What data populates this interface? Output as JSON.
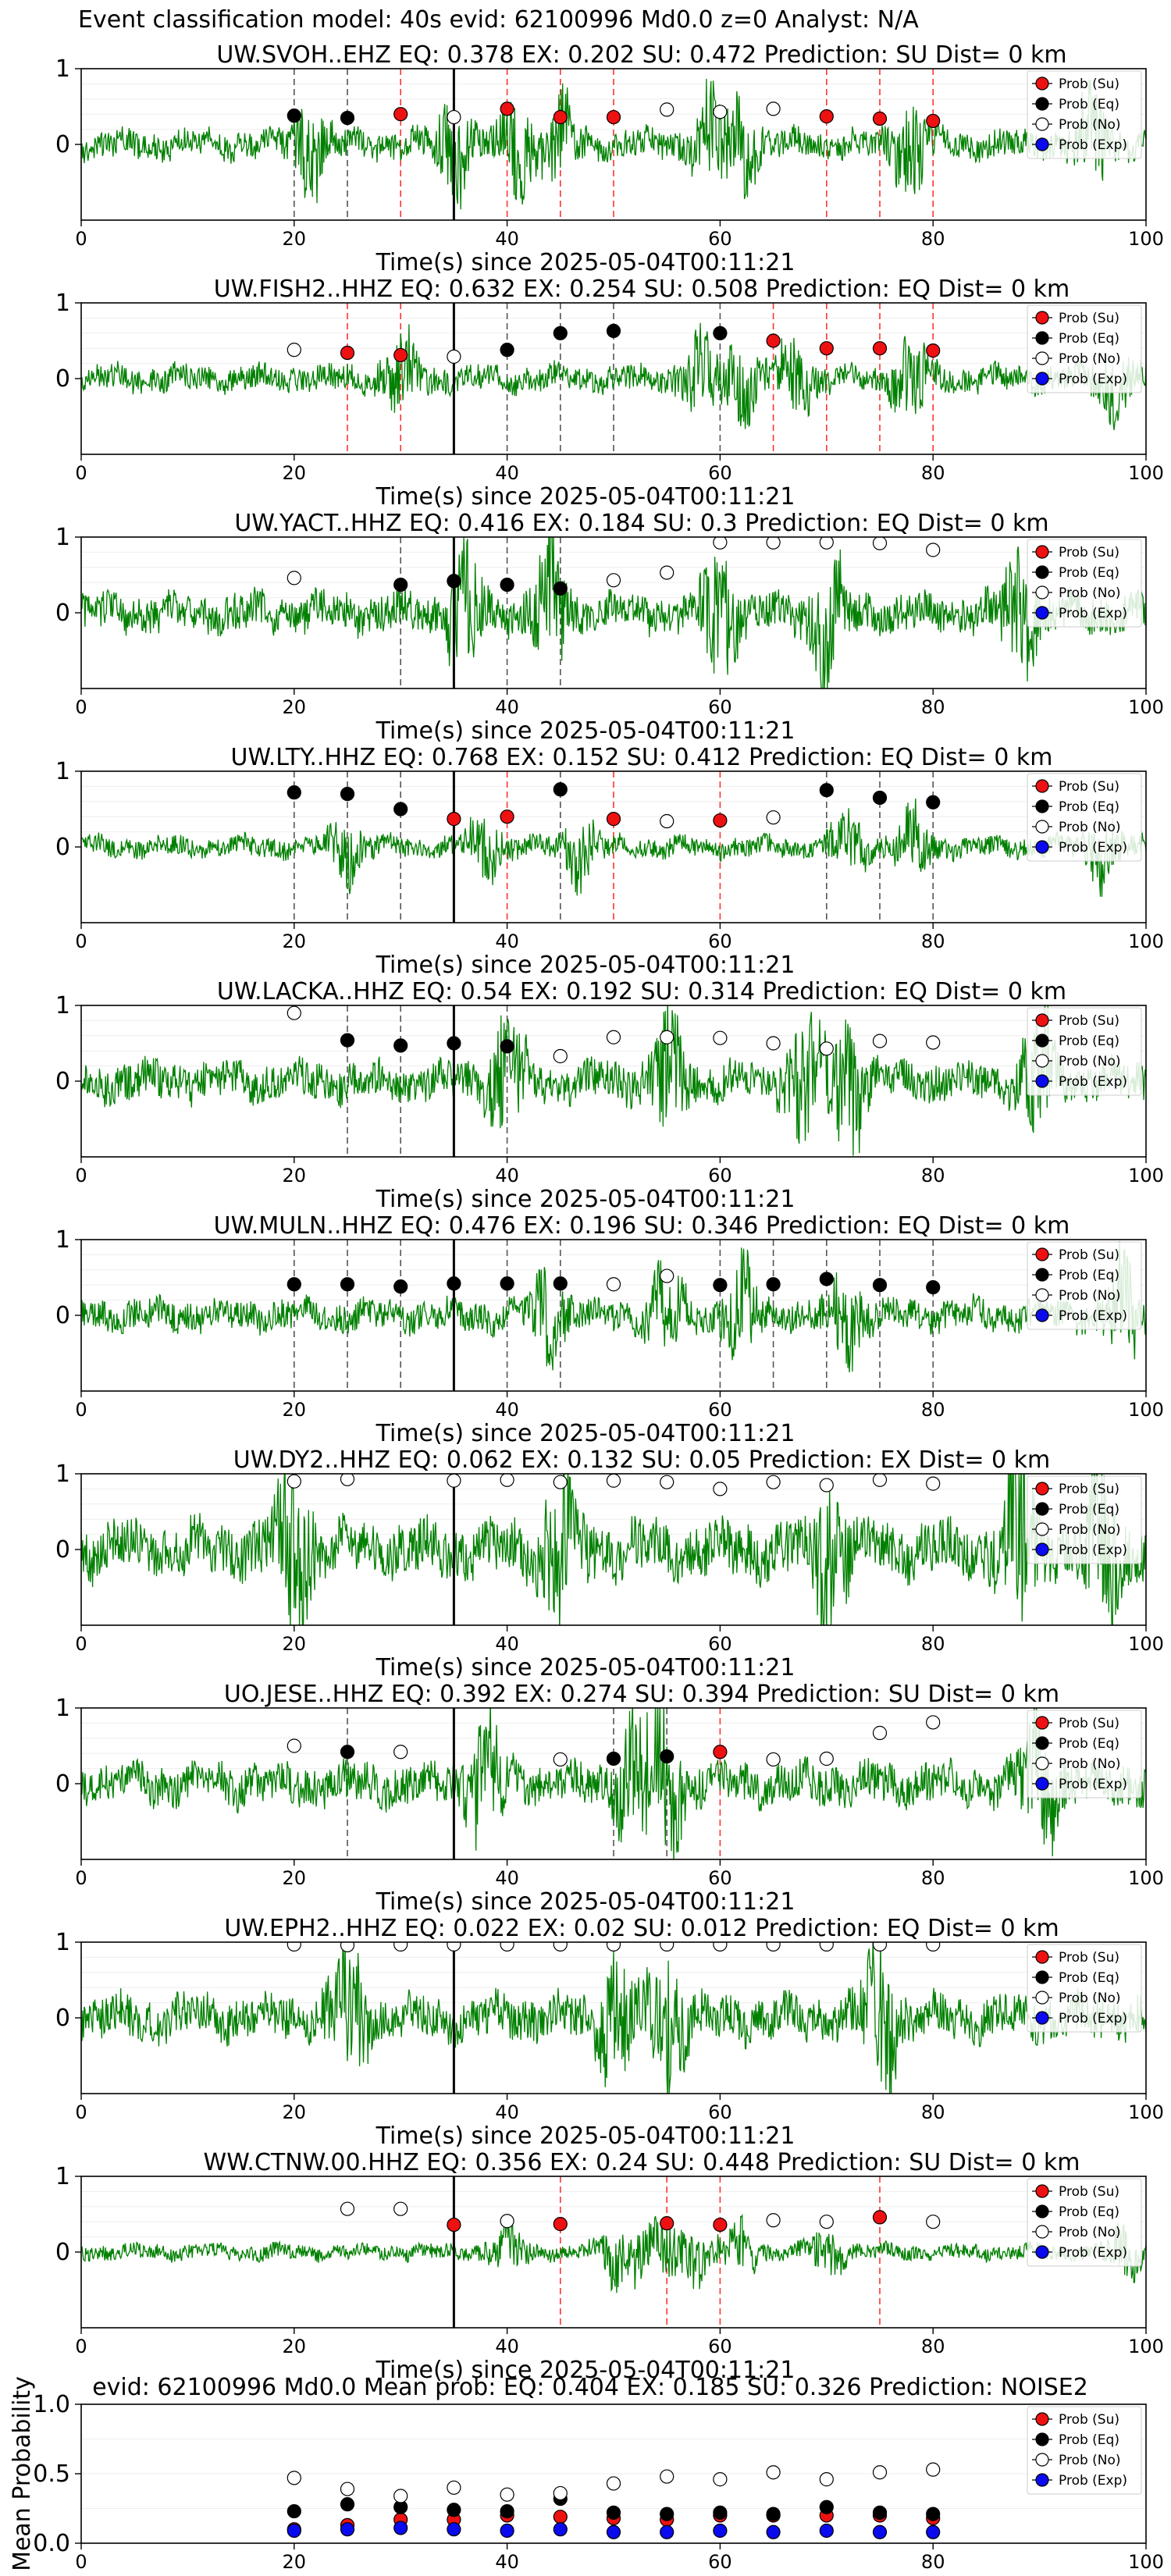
{
  "figure": {
    "suptitle": "Event classification model: 40s evid: 62100996 Md0.0 z=0 Analyst: N/A"
  },
  "colors": {
    "trace": "#008000",
    "su": "#ee1111",
    "eq": "#000000",
    "no": "#ffffff",
    "exp": "#0a0aee",
    "su_line": "#ff3333",
    "eq_line": "#555555",
    "origin_line": "#000000"
  },
  "legend": {
    "position": "top-right",
    "entries": [
      "Prob (Su)",
      "Prob (Eq)",
      "Prob (No)",
      "Prob (Exp)"
    ]
  },
  "chart_data": [
    {
      "type": "line+scatter",
      "title": "UW.SVOH..EHZ   EQ: 0.378  EX: 0.202  SU: 0.472   Prediction: SU    Dist= 0 km",
      "xlabel": "Time(s) since 2025-05-04T00:11:21",
      "ylabel": "",
      "xlim": [
        0,
        100
      ],
      "ylim": [
        -1,
        1
      ],
      "xticks": [
        0,
        20,
        40,
        60,
        80,
        100
      ],
      "yticks": [
        0,
        1
      ],
      "trace": {
        "amplitude": 0.22,
        "burst_times": [
          21.5,
          35,
          41,
          45,
          59,
          62,
          78,
          95
        ],
        "seed": 1
      },
      "origin_time": 35,
      "points": [
        {
          "t": 20,
          "p": 0.38,
          "cls": "eq"
        },
        {
          "t": 25,
          "p": 0.35,
          "cls": "eq"
        },
        {
          "t": 30,
          "p": 0.4,
          "cls": "su"
        },
        {
          "t": 35,
          "p": 0.36,
          "cls": "no"
        },
        {
          "t": 40,
          "p": 0.47,
          "cls": "su"
        },
        {
          "t": 45,
          "p": 0.36,
          "cls": "su"
        },
        {
          "t": 50,
          "p": 0.36,
          "cls": "su"
        },
        {
          "t": 55,
          "p": 0.46,
          "cls": "no"
        },
        {
          "t": 60,
          "p": 0.43,
          "cls": "no"
        },
        {
          "t": 65,
          "p": 0.47,
          "cls": "no"
        },
        {
          "t": 70,
          "p": 0.37,
          "cls": "su"
        },
        {
          "t": 75,
          "p": 0.34,
          "cls": "su"
        },
        {
          "t": 80,
          "p": 0.31,
          "cls": "su"
        }
      ]
    },
    {
      "type": "line+scatter",
      "title": "UW.FISH2..HHZ   EQ: 0.632  EX: 0.254  SU: 0.508   Prediction: EQ    Dist= 0 km",
      "xlabel": "Time(s) since 2025-05-04T00:11:21",
      "ylabel": "",
      "xlim": [
        0,
        100
      ],
      "ylim": [
        -1,
        1
      ],
      "xticks": [
        0,
        20,
        40,
        60,
        80,
        100
      ],
      "yticks": [
        0,
        1
      ],
      "trace": {
        "amplitude": 0.2,
        "burst_times": [
          30,
          58,
          62,
          67,
          78,
          97
        ],
        "seed": 2
      },
      "origin_time": 35,
      "points": [
        {
          "t": 20,
          "p": 0.38,
          "cls": "no"
        },
        {
          "t": 25,
          "p": 0.34,
          "cls": "su"
        },
        {
          "t": 30,
          "p": 0.31,
          "cls": "su"
        },
        {
          "t": 35,
          "p": 0.29,
          "cls": "no"
        },
        {
          "t": 40,
          "p": 0.38,
          "cls": "eq"
        },
        {
          "t": 45,
          "p": 0.6,
          "cls": "eq"
        },
        {
          "t": 50,
          "p": 0.63,
          "cls": "eq"
        },
        {
          "t": 60,
          "p": 0.6,
          "cls": "eq"
        },
        {
          "t": 65,
          "p": 0.5,
          "cls": "su"
        },
        {
          "t": 70,
          "p": 0.4,
          "cls": "su"
        },
        {
          "t": 75,
          "p": 0.4,
          "cls": "su"
        },
        {
          "t": 80,
          "p": 0.37,
          "cls": "su"
        }
      ]
    },
    {
      "type": "line+scatter",
      "title": "UW.YACT..HHZ   EQ: 0.416  EX: 0.184  SU: 0.3   Prediction: EQ    Dist= 0 km",
      "xlabel": "Time(s) since 2025-05-04T00:11:21",
      "ylabel": "",
      "xlim": [
        0,
        100
      ],
      "ylim": [
        -1,
        1
      ],
      "xticks": [
        0,
        20,
        40,
        60,
        80,
        100
      ],
      "yticks": [
        0,
        1
      ],
      "trace": {
        "amplitude": 0.3,
        "burst_times": [
          36,
          44,
          60,
          70,
          88
        ],
        "seed": 3
      },
      "origin_time": 35,
      "points": [
        {
          "t": 20,
          "p": 0.46,
          "cls": "no"
        },
        {
          "t": 30,
          "p": 0.37,
          "cls": "eq"
        },
        {
          "t": 35,
          "p": 0.42,
          "cls": "eq"
        },
        {
          "t": 40,
          "p": 0.37,
          "cls": "eq"
        },
        {
          "t": 45,
          "p": 0.32,
          "cls": "eq"
        },
        {
          "t": 50,
          "p": 0.43,
          "cls": "no"
        },
        {
          "t": 55,
          "p": 0.53,
          "cls": "no"
        },
        {
          "t": 60,
          "p": 0.93,
          "cls": "no"
        },
        {
          "t": 65,
          "p": 0.93,
          "cls": "no"
        },
        {
          "t": 70,
          "p": 0.93,
          "cls": "no"
        },
        {
          "t": 75,
          "p": 0.92,
          "cls": "no"
        },
        {
          "t": 80,
          "p": 0.83,
          "cls": "no"
        }
      ]
    },
    {
      "type": "line+scatter",
      "title": "UW.LTY..HHZ   EQ: 0.768  EX: 0.152  SU: 0.412   Prediction: EQ    Dist= 0 km",
      "xlabel": "Time(s) since 2025-05-04T00:11:21",
      "ylabel": "",
      "xlim": [
        0,
        100
      ],
      "ylim": [
        -1,
        1
      ],
      "xticks": [
        0,
        20,
        40,
        60,
        80,
        100
      ],
      "yticks": [
        0,
        1
      ],
      "trace": {
        "amplitude": 0.16,
        "burst_times": [
          25,
          38,
          47,
          72,
          78,
          96
        ],
        "seed": 4
      },
      "origin_time": 35,
      "points": [
        {
          "t": 20,
          "p": 0.72,
          "cls": "eq"
        },
        {
          "t": 25,
          "p": 0.7,
          "cls": "eq"
        },
        {
          "t": 30,
          "p": 0.5,
          "cls": "eq"
        },
        {
          "t": 35,
          "p": 0.37,
          "cls": "su"
        },
        {
          "t": 40,
          "p": 0.4,
          "cls": "su"
        },
        {
          "t": 45,
          "p": 0.76,
          "cls": "eq"
        },
        {
          "t": 50,
          "p": 0.37,
          "cls": "su"
        },
        {
          "t": 55,
          "p": 0.34,
          "cls": "no"
        },
        {
          "t": 60,
          "p": 0.35,
          "cls": "su"
        },
        {
          "t": 65,
          "p": 0.39,
          "cls": "no"
        },
        {
          "t": 70,
          "p": 0.75,
          "cls": "eq"
        },
        {
          "t": 75,
          "p": 0.65,
          "cls": "eq"
        },
        {
          "t": 80,
          "p": 0.59,
          "cls": "eq"
        }
      ]
    },
    {
      "type": "line+scatter",
      "title": "UW.LACKA..HHZ   EQ: 0.54  EX: 0.192  SU: 0.314   Prediction: EQ    Dist= 0 km",
      "xlabel": "Time(s) since 2025-05-04T00:11:21",
      "ylabel": "",
      "xlim": [
        0,
        100
      ],
      "ylim": [
        -1,
        1
      ],
      "xticks": [
        0,
        20,
        40,
        60,
        80,
        100
      ],
      "yticks": [
        0,
        1
      ],
      "trace": {
        "amplitude": 0.3,
        "burst_times": [
          40,
          55,
          68,
          72,
          90
        ],
        "seed": 5
      },
      "origin_time": 35,
      "points": [
        {
          "t": 20,
          "p": 0.9,
          "cls": "no"
        },
        {
          "t": 25,
          "p": 0.54,
          "cls": "eq"
        },
        {
          "t": 30,
          "p": 0.47,
          "cls": "eq"
        },
        {
          "t": 35,
          "p": 0.5,
          "cls": "eq"
        },
        {
          "t": 40,
          "p": 0.46,
          "cls": "eq"
        },
        {
          "t": 45,
          "p": 0.33,
          "cls": "no"
        },
        {
          "t": 50,
          "p": 0.58,
          "cls": "no"
        },
        {
          "t": 55,
          "p": 0.58,
          "cls": "no"
        },
        {
          "t": 60,
          "p": 0.57,
          "cls": "no"
        },
        {
          "t": 65,
          "p": 0.5,
          "cls": "no"
        },
        {
          "t": 70,
          "p": 0.43,
          "cls": "no"
        },
        {
          "t": 75,
          "p": 0.53,
          "cls": "no"
        },
        {
          "t": 80,
          "p": 0.51,
          "cls": "no"
        }
      ]
    },
    {
      "type": "line+scatter",
      "title": "UW.MULN..HHZ   EQ: 0.476  EX: 0.196  SU: 0.346   Prediction: EQ    Dist= 0 km",
      "xlabel": "Time(s) since 2025-05-04T00:11:21",
      "ylabel": "",
      "xlim": [
        0,
        100
      ],
      "ylim": [
        -1,
        1
      ],
      "xticks": [
        0,
        20,
        40,
        60,
        80,
        100
      ],
      "yticks": [
        0,
        1
      ],
      "trace": {
        "amplitude": 0.24,
        "burst_times": [
          44,
          55,
          62,
          72,
          98
        ],
        "seed": 6
      },
      "origin_time": 35,
      "points": [
        {
          "t": 20,
          "p": 0.41,
          "cls": "eq"
        },
        {
          "t": 25,
          "p": 0.41,
          "cls": "eq"
        },
        {
          "t": 30,
          "p": 0.38,
          "cls": "eq"
        },
        {
          "t": 35,
          "p": 0.42,
          "cls": "eq"
        },
        {
          "t": 40,
          "p": 0.42,
          "cls": "eq"
        },
        {
          "t": 45,
          "p": 0.42,
          "cls": "eq"
        },
        {
          "t": 50,
          "p": 0.41,
          "cls": "no"
        },
        {
          "t": 55,
          "p": 0.52,
          "cls": "no"
        },
        {
          "t": 60,
          "p": 0.4,
          "cls": "eq"
        },
        {
          "t": 65,
          "p": 0.41,
          "cls": "eq"
        },
        {
          "t": 70,
          "p": 0.48,
          "cls": "eq"
        },
        {
          "t": 75,
          "p": 0.4,
          "cls": "eq"
        },
        {
          "t": 80,
          "p": 0.37,
          "cls": "eq"
        }
      ]
    },
    {
      "type": "line+scatter",
      "title": "UW.DY2..HHZ   EQ: 0.062  EX: 0.132  SU: 0.05   Prediction: EX    Dist= 0 km",
      "xlabel": "Time(s) since 2025-05-04T00:11:21",
      "ylabel": "",
      "xlim": [
        0,
        100
      ],
      "ylim": [
        -1,
        1
      ],
      "xticks": [
        0,
        20,
        40,
        60,
        80,
        100
      ],
      "yticks": [
        0,
        1
      ],
      "trace": {
        "amplitude": 0.42,
        "burst_times": [
          20,
          45,
          70,
          88,
          96
        ],
        "seed": 7
      },
      "origin_time": 35,
      "points": [
        {
          "t": 20,
          "p": 0.9,
          "cls": "no"
        },
        {
          "t": 25,
          "p": 0.93,
          "cls": "no"
        },
        {
          "t": 35,
          "p": 0.91,
          "cls": "no"
        },
        {
          "t": 40,
          "p": 0.92,
          "cls": "no"
        },
        {
          "t": 45,
          "p": 0.89,
          "cls": "no"
        },
        {
          "t": 50,
          "p": 0.91,
          "cls": "no"
        },
        {
          "t": 55,
          "p": 0.89,
          "cls": "no"
        },
        {
          "t": 60,
          "p": 0.8,
          "cls": "no"
        },
        {
          "t": 65,
          "p": 0.89,
          "cls": "no"
        },
        {
          "t": 70,
          "p": 0.85,
          "cls": "no"
        },
        {
          "t": 75,
          "p": 0.92,
          "cls": "no"
        },
        {
          "t": 80,
          "p": 0.87,
          "cls": "no"
        }
      ]
    },
    {
      "type": "line+scatter",
      "title": "UO.JESE..HHZ   EQ: 0.392  EX: 0.274  SU: 0.394   Prediction: SU    Dist= 0 km",
      "xlabel": "Time(s) since 2025-05-04T00:11:21",
      "ylabel": "",
      "xlim": [
        0,
        100
      ],
      "ylim": [
        -1,
        1
      ],
      "xticks": [
        0,
        20,
        40,
        60,
        80,
        100
      ],
      "yticks": [
        0,
        1
      ],
      "trace": {
        "amplitude": 0.32,
        "burst_times": [
          38,
          52,
          55,
          90
        ],
        "seed": 8
      },
      "origin_time": 35,
      "points": [
        {
          "t": 20,
          "p": 0.5,
          "cls": "no"
        },
        {
          "t": 25,
          "p": 0.42,
          "cls": "eq"
        },
        {
          "t": 30,
          "p": 0.42,
          "cls": "no"
        },
        {
          "t": 45,
          "p": 0.32,
          "cls": "no"
        },
        {
          "t": 50,
          "p": 0.33,
          "cls": "eq"
        },
        {
          "t": 55,
          "p": 0.36,
          "cls": "eq"
        },
        {
          "t": 60,
          "p": 0.42,
          "cls": "su"
        },
        {
          "t": 65,
          "p": 0.32,
          "cls": "no"
        },
        {
          "t": 70,
          "p": 0.33,
          "cls": "no"
        },
        {
          "t": 75,
          "p": 0.67,
          "cls": "no"
        },
        {
          "t": 80,
          "p": 0.81,
          "cls": "no"
        }
      ]
    },
    {
      "type": "line+scatter",
      "title": "UW.EPH2..HHZ   EQ: 0.022  EX: 0.02  SU: 0.012   Prediction: EQ    Dist= 0 km",
      "xlabel": "Time(s) since 2025-05-04T00:11:21",
      "ylabel": "",
      "xlim": [
        0,
        100
      ],
      "ylim": [
        -1,
        1
      ],
      "xticks": [
        0,
        20,
        40,
        60,
        80,
        100
      ],
      "yticks": [
        0,
        1
      ],
      "trace": {
        "amplitude": 0.34,
        "burst_times": [
          25,
          50,
          55,
          75
        ],
        "seed": 9
      },
      "origin_time": 35,
      "points": [
        {
          "t": 20,
          "p": 0.97,
          "cls": "no"
        },
        {
          "t": 25,
          "p": 0.96,
          "cls": "no"
        },
        {
          "t": 30,
          "p": 0.97,
          "cls": "no"
        },
        {
          "t": 35,
          "p": 0.97,
          "cls": "no"
        },
        {
          "t": 40,
          "p": 0.97,
          "cls": "no"
        },
        {
          "t": 45,
          "p": 0.97,
          "cls": "no"
        },
        {
          "t": 50,
          "p": 0.97,
          "cls": "no"
        },
        {
          "t": 55,
          "p": 0.97,
          "cls": "no"
        },
        {
          "t": 60,
          "p": 0.97,
          "cls": "no"
        },
        {
          "t": 65,
          "p": 0.97,
          "cls": "no"
        },
        {
          "t": 70,
          "p": 0.97,
          "cls": "no"
        },
        {
          "t": 75,
          "p": 0.97,
          "cls": "no"
        },
        {
          "t": 80,
          "p": 0.97,
          "cls": "no"
        }
      ]
    },
    {
      "type": "line+scatter",
      "title": "WW.CTNW.00.HHZ   EQ: 0.356  EX: 0.24  SU: 0.448   Prediction: SU    Dist= 0 km",
      "xlabel": "Time(s) since 2025-05-04T00:11:21",
      "ylabel": "",
      "xlim": [
        0,
        100
      ],
      "ylim": [
        -1,
        1
      ],
      "xticks": [
        0,
        20,
        40,
        60,
        80,
        100
      ],
      "yticks": [
        0,
        1
      ],
      "trace": {
        "amplitude": 0.12,
        "burst_times": [
          40,
          50,
          52,
          55,
          58,
          62,
          70,
          98
        ],
        "seed": 10
      },
      "origin_time": 35,
      "points": [
        {
          "t": 25,
          "p": 0.57,
          "cls": "no"
        },
        {
          "t": 30,
          "p": 0.57,
          "cls": "no"
        },
        {
          "t": 35,
          "p": 0.36,
          "cls": "su"
        },
        {
          "t": 40,
          "p": 0.41,
          "cls": "no"
        },
        {
          "t": 45,
          "p": 0.37,
          "cls": "su"
        },
        {
          "t": 55,
          "p": 0.38,
          "cls": "su"
        },
        {
          "t": 60,
          "p": 0.36,
          "cls": "su"
        },
        {
          "t": 65,
          "p": 0.42,
          "cls": "no"
        },
        {
          "t": 70,
          "p": 0.4,
          "cls": "no"
        },
        {
          "t": 75,
          "p": 0.46,
          "cls": "su"
        },
        {
          "t": 80,
          "p": 0.4,
          "cls": "no"
        }
      ]
    },
    {
      "type": "scatter",
      "title": "evid: 62100996  Md0.0   Mean prob:   EQ: 0.404  EX: 0.185  SU: 0.326   Prediction: NOISE2",
      "xlabel": "",
      "ylabel": "Mean Probability",
      "xlim": [
        0,
        100
      ],
      "ylim": [
        0,
        1
      ],
      "xticks": [
        0,
        20,
        40,
        60,
        80,
        100
      ],
      "yticks": [
        0.0,
        0.5,
        1.0
      ],
      "x": [
        20,
        25,
        30,
        35,
        40,
        45,
        50,
        55,
        60,
        65,
        70,
        75,
        80
      ],
      "series": [
        {
          "name": "Prob (Su)",
          "cls": "su",
          "values": [
            0.1,
            0.13,
            0.17,
            0.17,
            0.2,
            0.19,
            0.18,
            0.17,
            0.2,
            0.2,
            0.2,
            0.2,
            0.18
          ]
        },
        {
          "name": "Prob (Eq)",
          "cls": "eq",
          "values": [
            0.23,
            0.28,
            0.26,
            0.24,
            0.23,
            0.32,
            0.22,
            0.21,
            0.22,
            0.21,
            0.26,
            0.22,
            0.21
          ]
        },
        {
          "name": "Prob (No)",
          "cls": "no",
          "values": [
            0.47,
            0.39,
            0.34,
            0.4,
            0.35,
            0.36,
            0.43,
            0.48,
            0.46,
            0.51,
            0.46,
            0.51,
            0.53
          ]
        },
        {
          "name": "Prob (Exp)",
          "cls": "exp",
          "values": [
            0.09,
            0.1,
            0.11,
            0.1,
            0.09,
            0.1,
            0.08,
            0.08,
            0.09,
            0.08,
            0.09,
            0.08,
            0.08
          ]
        }
      ]
    }
  ]
}
